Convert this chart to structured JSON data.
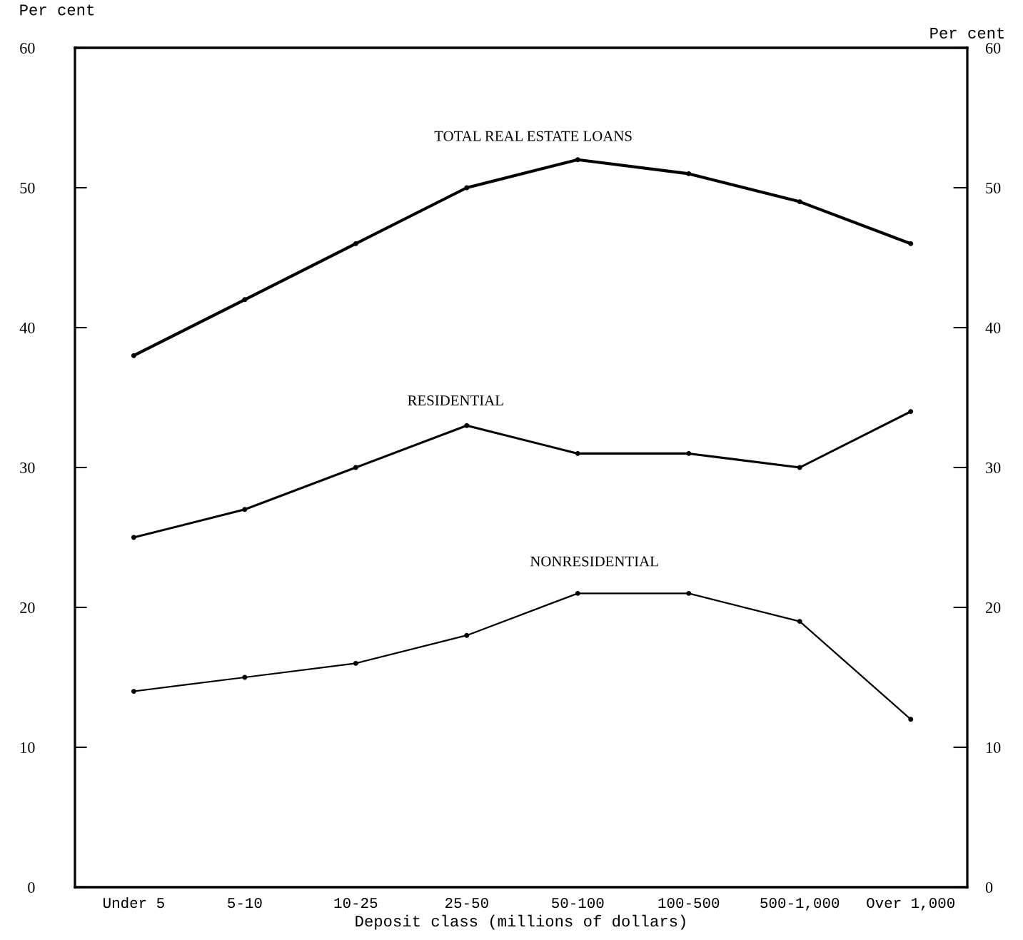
{
  "chart_data": {
    "type": "line",
    "xlabel": "Deposit class (millions of dollars)",
    "ylabel": "Per cent",
    "y2label": "Per cent",
    "categories": [
      "Under 5",
      "5-10",
      "10-25",
      "25-50",
      "50-100",
      "100-500",
      "500-1,000",
      "Over 1,000"
    ],
    "series": [
      {
        "name": "TOTAL REAL ESTATE LOANS",
        "color": "#000000",
        "values": [
          38,
          42,
          46,
          50,
          52,
          51,
          49,
          46
        ]
      },
      {
        "name": "RESIDENTIAL",
        "color": "#000000",
        "values": [
          25,
          27,
          30,
          33,
          31,
          31,
          30,
          34
        ]
      },
      {
        "name": "NONRESIDENTIAL",
        "color": "#000000",
        "values": [
          14,
          15,
          16,
          18,
          21,
          21,
          19,
          12
        ]
      }
    ],
    "ylim": [
      0,
      60
    ],
    "yticks": [
      0,
      10,
      20,
      30,
      40,
      50,
      60
    ],
    "y2lim": [
      0,
      60
    ],
    "y2ticks": [
      0,
      10,
      20,
      30,
      40,
      50,
      60
    ],
    "grid": false,
    "legend": false,
    "marker": "circle",
    "line_style": "solid"
  }
}
